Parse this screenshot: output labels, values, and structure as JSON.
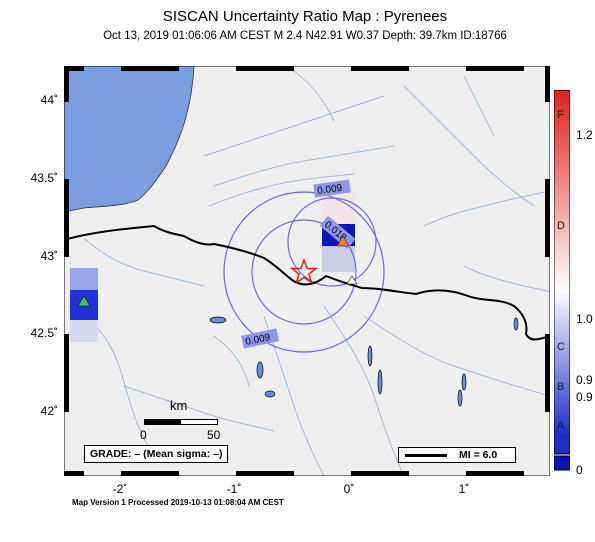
{
  "title": "SISCAN Uncertainty Ratio Map : Pyrenees",
  "subtitle": "Oct 13, 2019 01:06:06 AM CEST   M 2.4   N42.91 W0.37   Depth: 39.7km   ID:18766",
  "map": {
    "lat_ticks": [
      "44˚",
      "43.5˚",
      "43˚",
      "42.5˚",
      "42˚"
    ],
    "lon_ticks": [
      "-2˚",
      "-1˚",
      "0˚",
      "1˚"
    ],
    "contour_labels": [
      "0.009",
      "0.018",
      "0.009"
    ],
    "scale_bar": {
      "unit": "km",
      "left_label": "0",
      "right_label": "50"
    },
    "grade_label": "GRADE: – (Mean sigma: –)",
    "mi_label": "MI = 6.0",
    "epicenter_symbol": "star-icon",
    "colors": {
      "ocean": "#7a9ee0",
      "land": "#efefef",
      "rivers": "#9ab7db",
      "border": "#000000",
      "epicenter": "#e0201c"
    }
  },
  "colorbar": {
    "letters": [
      "F",
      "D",
      "C",
      "B",
      "A"
    ],
    "numbers": [
      "1.2",
      "1.0",
      "0.9",
      "0.9",
      "0"
    ],
    "colors": [
      "#e0201c",
      "#ffffff",
      "#1e2cc8"
    ]
  },
  "footer": "Map Version 1 Processed 2019-10-13 01:08:04 AM CEST"
}
